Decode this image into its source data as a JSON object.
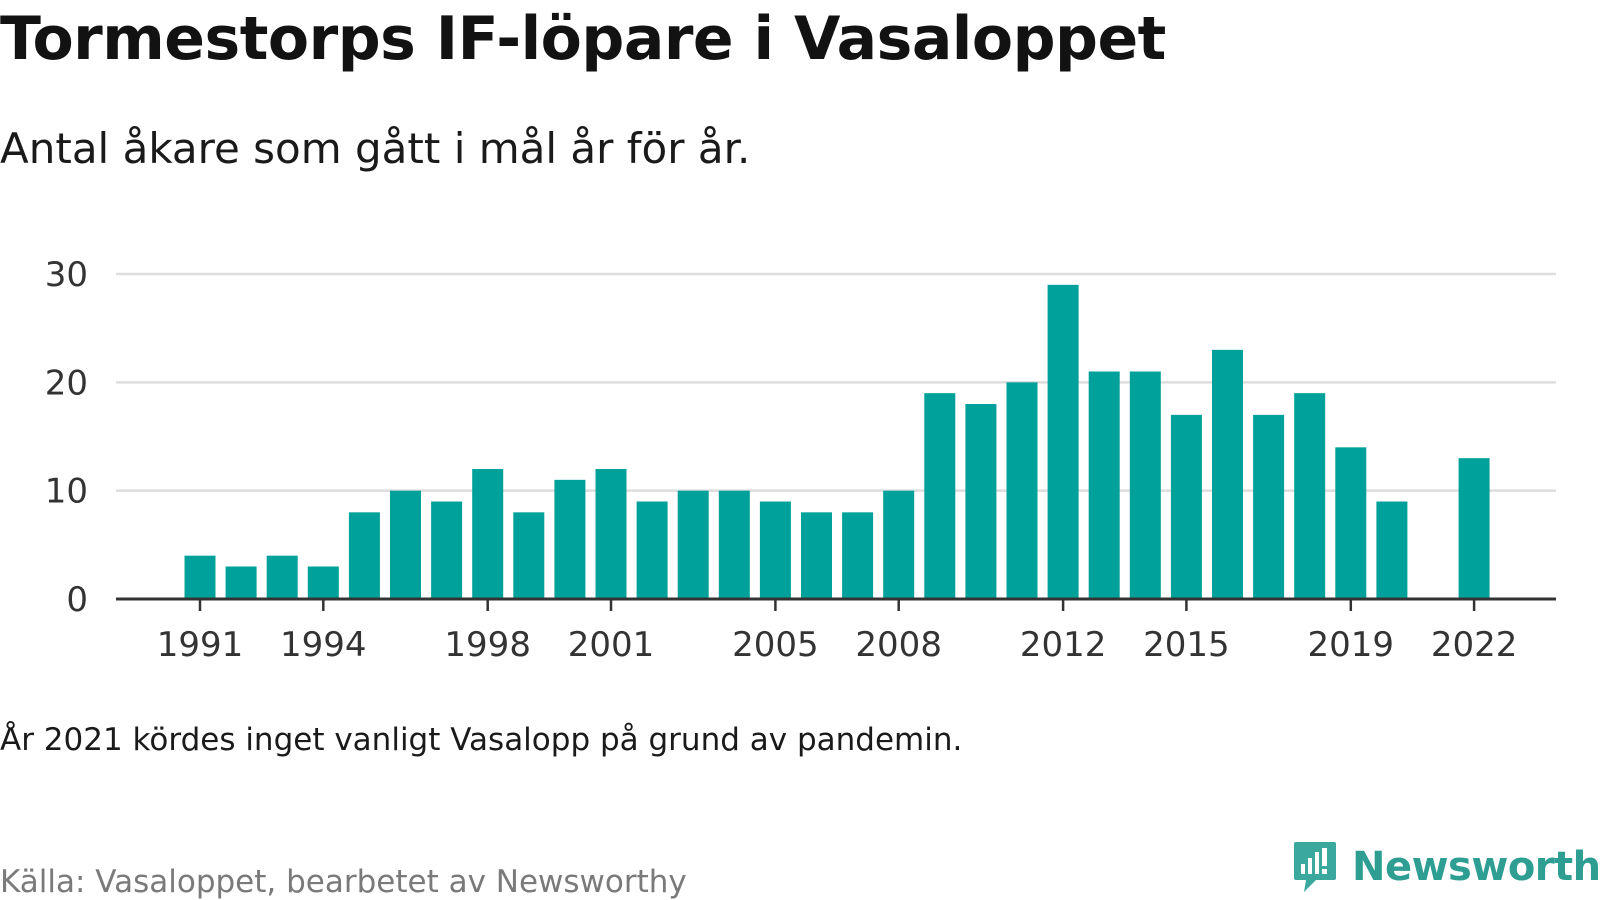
{
  "title": "Tormestorps IF-löpare i Vasaloppet",
  "subtitle": "Antal åkare som gått i mål år för år.",
  "note": "År 2021 kördes inget vanligt Vasalopp på grund av pandemin.",
  "source": "Källa: Vasaloppet, bearbetet av Newsworthy",
  "brand": {
    "name": "Newsworthy",
    "icon": "newsworthy-logo-icon"
  },
  "colors": {
    "bar": "#00a19a",
    "grid": "#dddddd",
    "axis": "#333333",
    "brand": "#2e9e93",
    "source": "#7a7a7a"
  },
  "chart_data": {
    "type": "bar",
    "categories": [
      1991,
      1992,
      1993,
      1994,
      1995,
      1996,
      1997,
      1998,
      1999,
      2000,
      2001,
      2002,
      2003,
      2004,
      2005,
      2006,
      2007,
      2008,
      2009,
      2010,
      2011,
      2012,
      2013,
      2014,
      2015,
      2016,
      2017,
      2018,
      2019,
      2020,
      2021,
      2022
    ],
    "values": [
      4,
      3,
      4,
      3,
      8,
      10,
      9,
      12,
      8,
      11,
      12,
      9,
      10,
      10,
      9,
      8,
      8,
      10,
      19,
      18,
      20,
      29,
      21,
      21,
      17,
      23,
      17,
      19,
      14,
      9,
      null,
      13
    ],
    "x_tick_labels": [
      "1991",
      "1994",
      "1998",
      "2001",
      "2005",
      "2008",
      "2012",
      "2015",
      "2019",
      "2022"
    ],
    "y_ticks": [
      0,
      10,
      20,
      30
    ],
    "ylim": [
      0,
      30
    ],
    "grid": true,
    "legend": "none",
    "xlabel": "",
    "ylabel": ""
  }
}
